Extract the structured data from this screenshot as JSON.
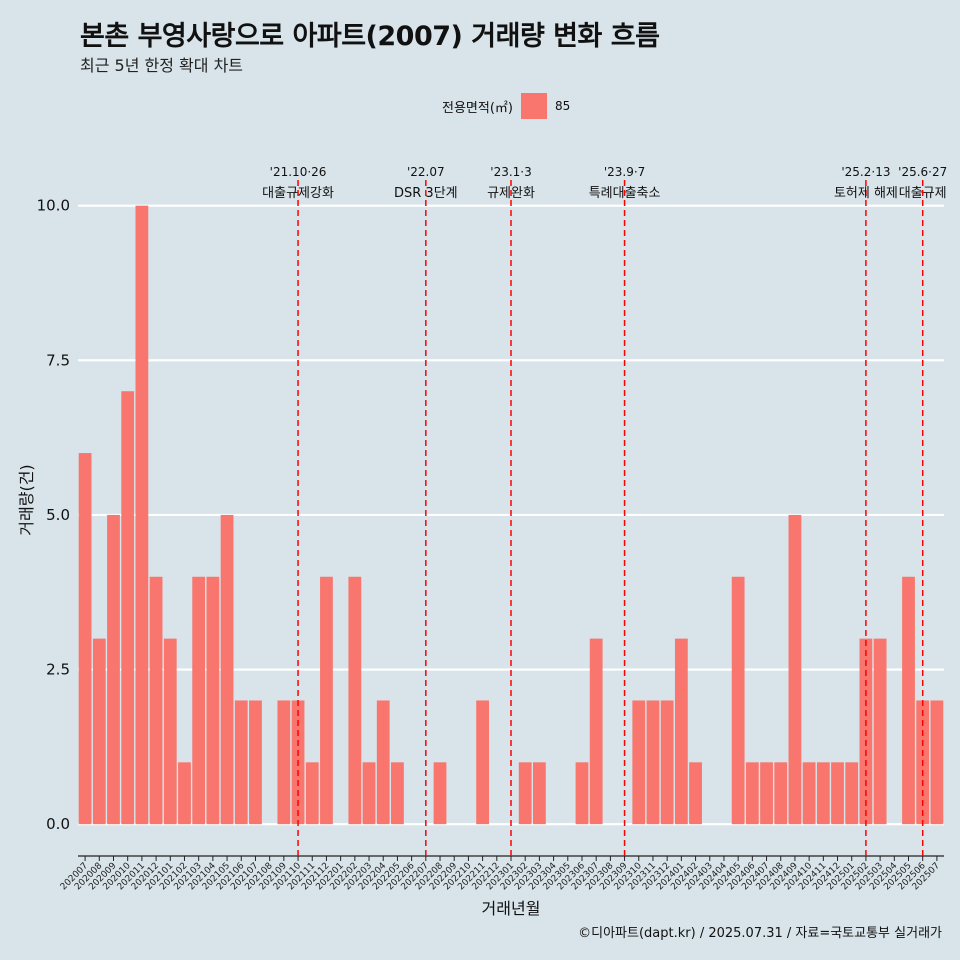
{
  "header": {
    "title": "본촌 부영사랑으로 아파트(2007) 거래량 변화 흐름",
    "subtitle": "최근 5년 한정 확대 차트"
  },
  "legend": {
    "title": "전용면적(㎡)",
    "item_label": "85",
    "color": "#f8766d"
  },
  "caption": "©디아파트(dapt.kr) / 2025.07.31 / 자료=국토교통부 실거래가",
  "chart_data": {
    "type": "bar",
    "xlabel": "거래년월",
    "ylabel": "거래량(건)",
    "ylim": [
      -0.45,
      10.9
    ],
    "yticks": [
      0.0,
      2.5,
      5.0,
      7.5,
      10.0
    ],
    "ytick_labels": [
      "0.0",
      "2.5",
      "5.0",
      "7.5",
      "10.0"
    ],
    "bar_color": "#f8766d",
    "grid": true,
    "legend_position": "top",
    "categories": [
      "202007",
      "202008",
      "202009",
      "202010",
      "202011",
      "202012",
      "202101",
      "202102",
      "202103",
      "202104",
      "202105",
      "202106",
      "202107",
      "202108",
      "202109",
      "202110",
      "202111",
      "202112",
      "202201",
      "202202",
      "202203",
      "202204",
      "202205",
      "202206",
      "202207",
      "202208",
      "202209",
      "202210",
      "202211",
      "202212",
      "202301",
      "202302",
      "202303",
      "202304",
      "202305",
      "202306",
      "202307",
      "202308",
      "202309",
      "202310",
      "202311",
      "202312",
      "202401",
      "202402",
      "202403",
      "202404",
      "202405",
      "202406",
      "202407",
      "202408",
      "202409",
      "202410",
      "202411",
      "202412",
      "202501",
      "202502",
      "202503",
      "202504",
      "202505",
      "202506",
      "202507"
    ],
    "series": [
      {
        "values": [
          6,
          3,
          5,
          7,
          10,
          4,
          3,
          1,
          4,
          4,
          5,
          2,
          2,
          0,
          2,
          2,
          1,
          4,
          0,
          4,
          1,
          2,
          1,
          0,
          0,
          1,
          0,
          0,
          2,
          0,
          0,
          1,
          1,
          0,
          0,
          1,
          3,
          0,
          0,
          2,
          2,
          2,
          3,
          1,
          0,
          0,
          4,
          1,
          1,
          1,
          5,
          1,
          1,
          1,
          1,
          3,
          3,
          0,
          4,
          2,
          2
        ]
      }
    ],
    "annotations": [
      {
        "category": "202110",
        "line1": "'21.10·26",
        "line2": "대출규제강화"
      },
      {
        "category": "202207",
        "line1": "'22.07",
        "line2": "DSR 3단계"
      },
      {
        "category": "202301",
        "line1": "'23.1·3",
        "line2": "규제완화"
      },
      {
        "category": "202309",
        "line1": "'23.9·7",
        "line2": "특례대출축소"
      },
      {
        "category": "202502",
        "line1": "'25.2·13",
        "line2": "토허제 해제"
      },
      {
        "category": "202506",
        "line1": "'25.6·27",
        "line2": "대출규제"
      }
    ],
    "annotation_color": "#ff0000"
  }
}
